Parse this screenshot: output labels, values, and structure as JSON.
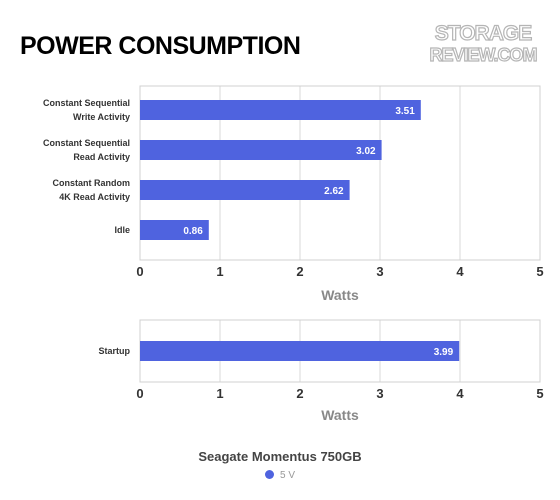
{
  "title": "POWER CONSUMPTION",
  "logo": {
    "line1": "STORAGE",
    "line2": "REVIEW.COM"
  },
  "colors": {
    "bar": "#4f63df",
    "grid": "#d9d9d9",
    "frame": "#d0d0d0"
  },
  "chart_data": [
    {
      "type": "bar",
      "orientation": "horizontal",
      "categories": [
        [
          "Constant Sequential",
          "Write Activity"
        ],
        [
          "Constant Sequential",
          "Read Activity"
        ],
        [
          "Constant Random",
          "4K Read Activity"
        ],
        [
          "Idle"
        ]
      ],
      "series": [
        {
          "name": "5 V",
          "values": [
            3.51,
            3.02,
            2.62,
            0.86
          ]
        }
      ],
      "xlabel": "Watts",
      "xlim": [
        0,
        5
      ],
      "ticks": [
        "0",
        "1",
        "2",
        "3",
        "4",
        "5"
      ],
      "grid": true
    },
    {
      "type": "bar",
      "orientation": "horizontal",
      "categories": [
        [
          "Startup"
        ]
      ],
      "series": [
        {
          "name": "5 V",
          "values": [
            3.99
          ]
        }
      ],
      "xlabel": "Watts",
      "xlim": [
        0,
        5
      ],
      "ticks": [
        "0",
        "1",
        "2",
        "3",
        "4",
        "5"
      ],
      "grid": true
    }
  ],
  "legend": {
    "title": "Seagate Momentus 750GB",
    "items": [
      {
        "label": "5 V",
        "color": "#4f63df"
      }
    ],
    "placement": "bottom"
  }
}
